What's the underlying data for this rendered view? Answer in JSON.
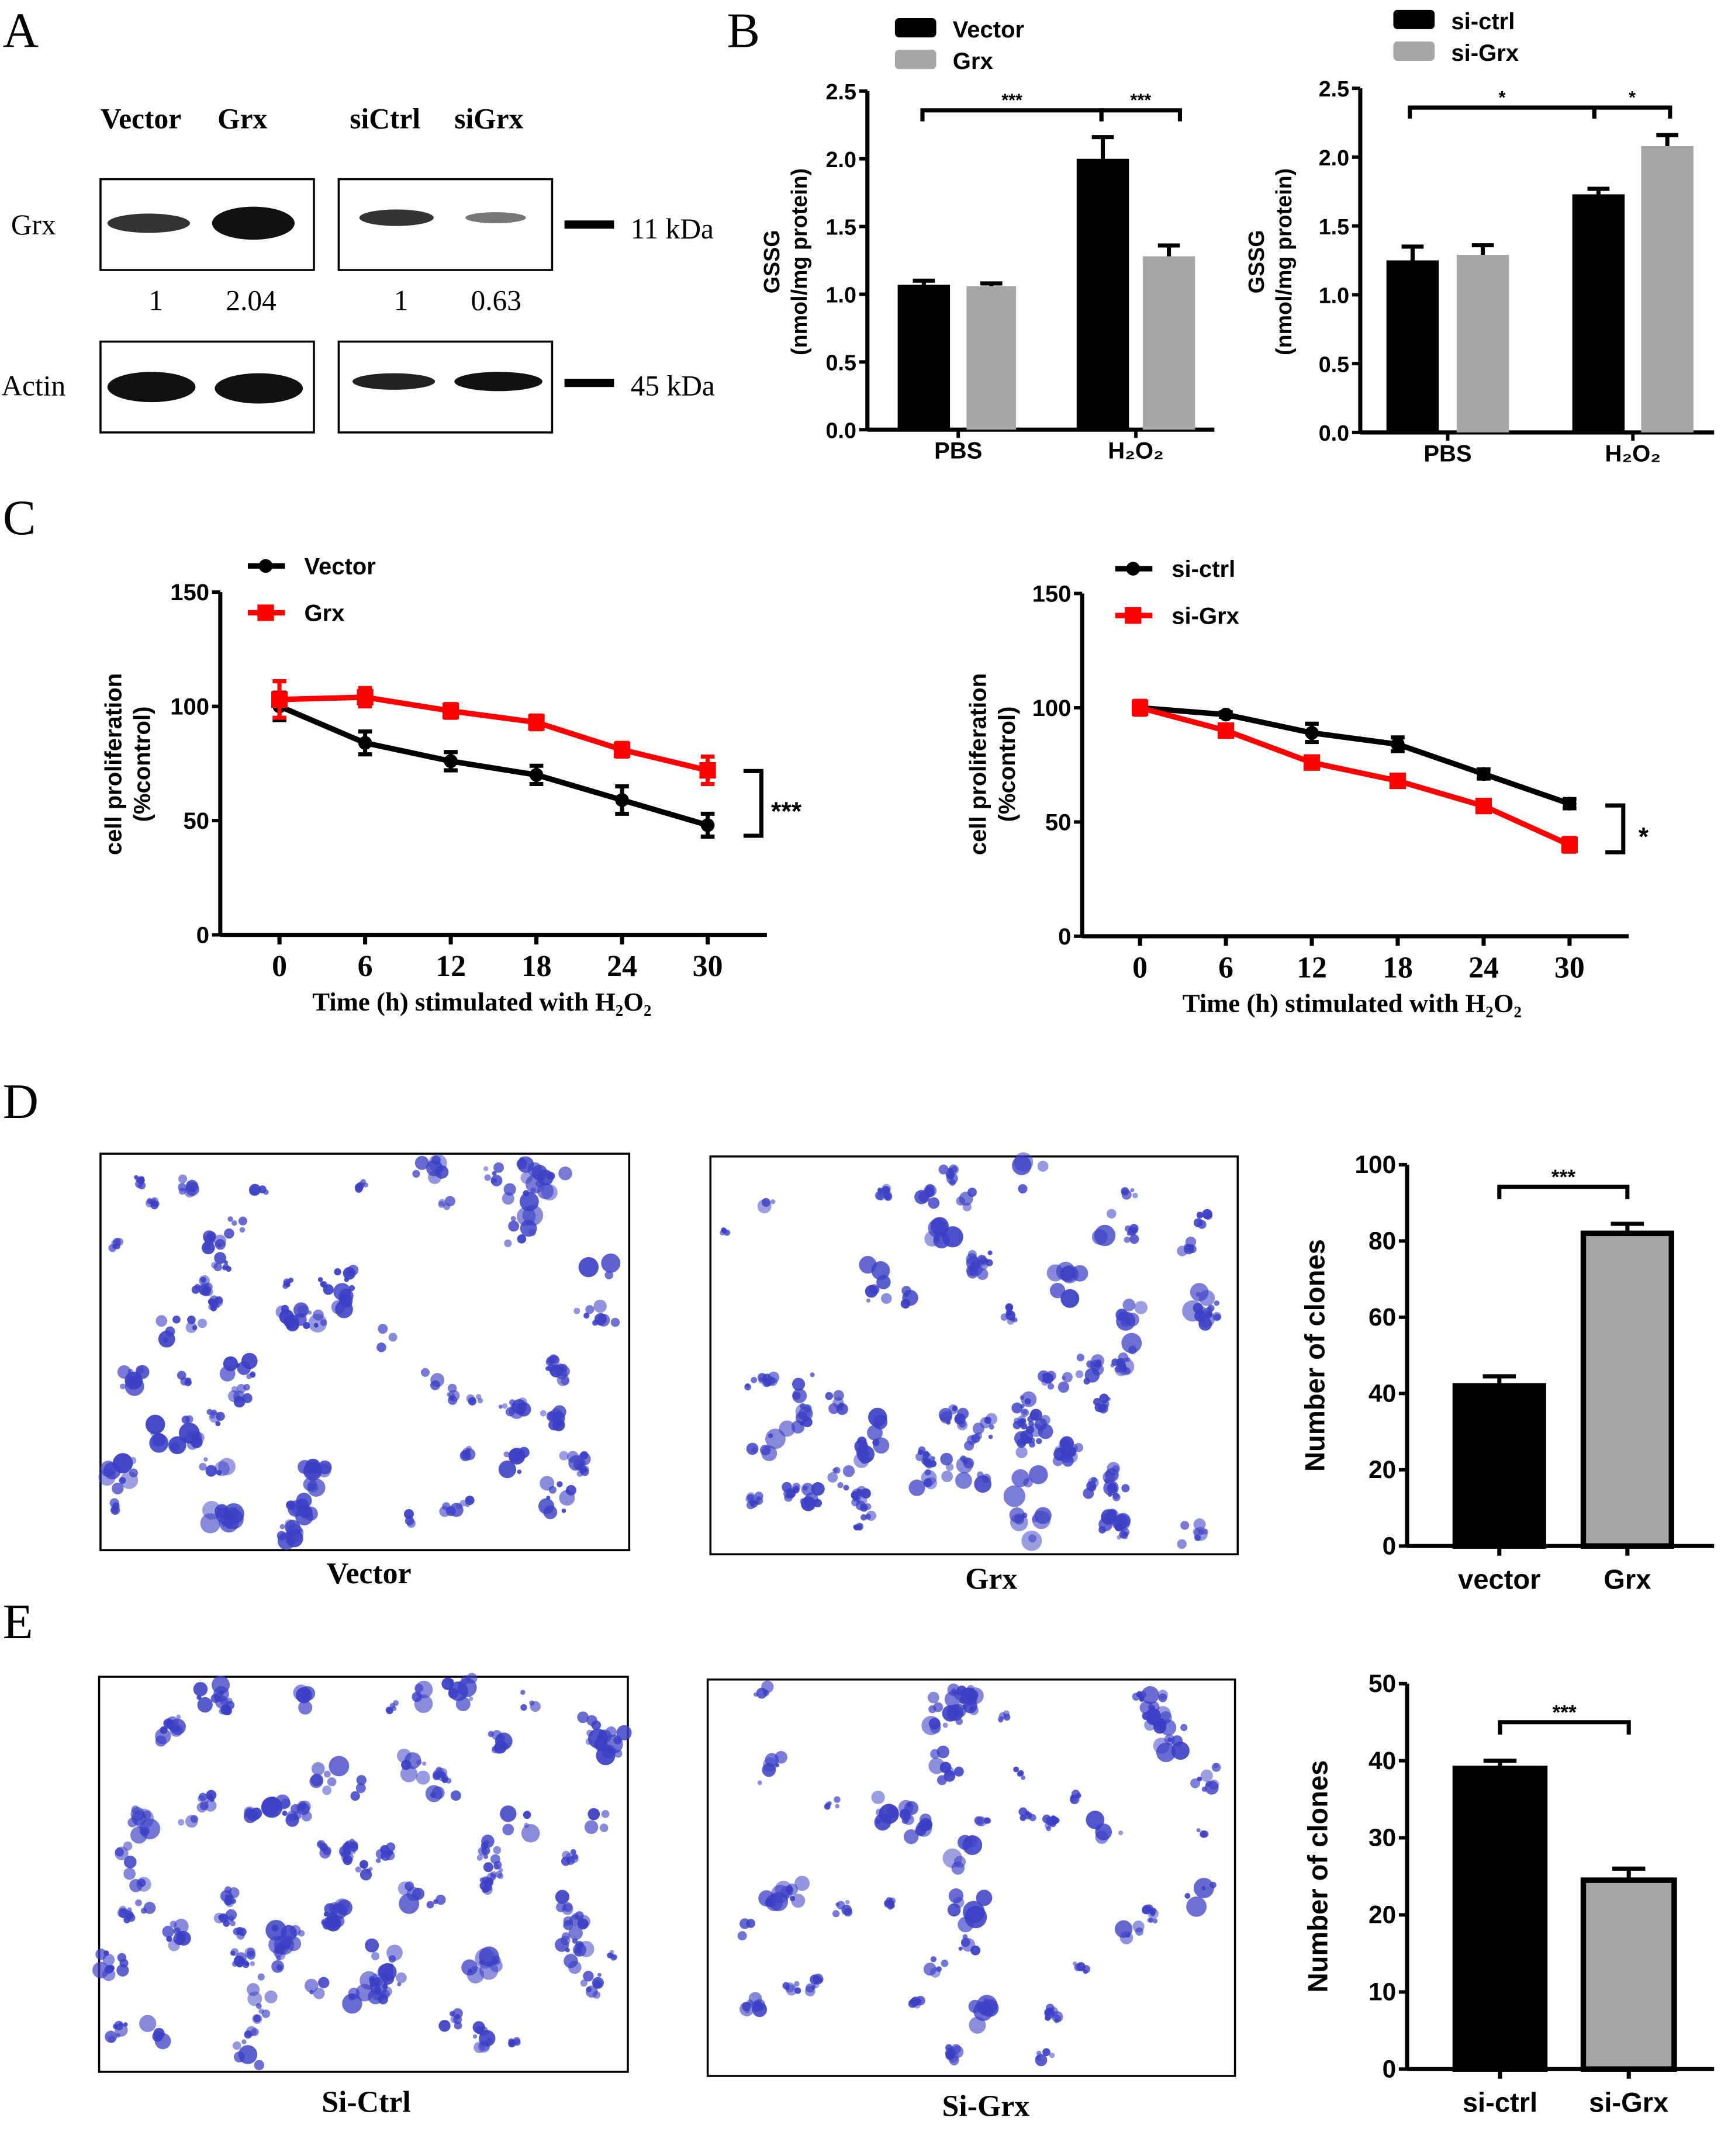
{
  "panel_labels": {
    "a": "A",
    "b": "B",
    "c": "C",
    "d": "D",
    "e": "E"
  },
  "western_blot": {
    "lane_labels": [
      "Vector",
      "Grx",
      "siCtrl",
      "siGrx"
    ],
    "row_labels": [
      "Grx",
      "Actin"
    ],
    "quantification": [
      "1",
      "2.04",
      "1",
      "0.63"
    ],
    "markers": [
      "11 kDa",
      "45 kDa"
    ]
  },
  "micrographs": {
    "captions": [
      "Vector",
      "Grx",
      "Si-Ctrl",
      "Si-Grx"
    ],
    "stain_color": "#3b3fc4"
  },
  "colors": {
    "black": "#000000",
    "grey": "#a6a6a6",
    "red": "#ff0000"
  },
  "chart_data": [
    {
      "id": "B-left",
      "type": "bar",
      "categories": [
        "PBS",
        "H₂O₂"
      ],
      "series": [
        {
          "name": "Vector",
          "values": [
            1.07,
            2.0
          ],
          "errors": [
            0.03,
            0.16
          ],
          "color": "#000000"
        },
        {
          "name": "Grx",
          "values": [
            1.06,
            1.28
          ],
          "errors": [
            0.02,
            0.08
          ],
          "color": "#a6a6a6"
        }
      ],
      "ylabel": [
        "GSSG",
        "(nmol/mg protein)"
      ],
      "ylim": [
        0,
        2.5
      ],
      "yticks": [
        "0.0",
        "0.5",
        "1.0",
        "1.5",
        "2.0",
        "2.5"
      ],
      "significance": [
        "***",
        "***"
      ],
      "legend": "top-left"
    },
    {
      "id": "B-right",
      "type": "bar",
      "categories": [
        "PBS",
        "H₂O₂"
      ],
      "series": [
        {
          "name": "si-ctrl",
          "values": [
            1.25,
            1.73
          ],
          "errors": [
            0.1,
            0.04
          ],
          "color": "#000000"
        },
        {
          "name": "si-Grx",
          "values": [
            1.29,
            2.08
          ],
          "errors": [
            0.07,
            0.08
          ],
          "color": "#a6a6a6"
        }
      ],
      "ylabel": [
        "GSSG",
        "(nmol/mg protein)"
      ],
      "ylim": [
        0,
        2.5
      ],
      "yticks": [
        "0.0",
        "0.5",
        "1.0",
        "1.5",
        "2.0",
        "2.5"
      ],
      "significance": [
        "*",
        "*"
      ],
      "legend": "top-left"
    },
    {
      "id": "C-left",
      "type": "line",
      "x": [
        0,
        6,
        12,
        18,
        24,
        30
      ],
      "series": [
        {
          "name": "Vector",
          "values": [
            100,
            84,
            76,
            70,
            59,
            48
          ],
          "errors": [
            6,
            5,
            4,
            4,
            6,
            5
          ],
          "color": "#000000",
          "marker": "circle"
        },
        {
          "name": "Grx",
          "values": [
            103,
            104,
            98,
            93,
            81,
            72
          ],
          "errors": [
            8,
            4,
            3,
            3,
            3,
            6
          ],
          "color": "#ff0000",
          "marker": "square"
        }
      ],
      "xlabel": "Time (h) stimulated with H₂O₂",
      "ylabel": [
        "cell proliferation",
        "(%control)"
      ],
      "ylim": [
        0,
        150
      ],
      "yticks": [
        "0",
        "50",
        "100",
        "150"
      ],
      "significance": "***",
      "legend": "top-left"
    },
    {
      "id": "C-right",
      "type": "line",
      "x": [
        0,
        6,
        12,
        18,
        24,
        30
      ],
      "series": [
        {
          "name": "si-ctrl",
          "values": [
            100,
            97,
            89,
            84,
            71,
            58
          ],
          "errors": [
            3,
            1,
            4,
            3,
            2,
            2
          ],
          "color": "#000000",
          "marker": "circle"
        },
        {
          "name": "si-Grx",
          "values": [
            100,
            90,
            76,
            68,
            57,
            40
          ],
          "errors": [
            3,
            2,
            2,
            2,
            2,
            3
          ],
          "color": "#ff0000",
          "marker": "square"
        }
      ],
      "xlabel": "Time (h) stimulated with H₂O₂",
      "ylabel": [
        "cell proliferation",
        "(%control)"
      ],
      "ylim": [
        0,
        150
      ],
      "yticks": [
        "0",
        "50",
        "100",
        "150"
      ],
      "significance": "*",
      "legend": "top-left"
    },
    {
      "id": "D",
      "type": "bar",
      "categories": [
        "vector",
        "Grx"
      ],
      "values": [
        42,
        82
      ],
      "errors": [
        2.5,
        2.5
      ],
      "colors": [
        "#000000",
        "#a6a6a6"
      ],
      "ylabel": "Number of clones",
      "ylim": [
        0,
        100
      ],
      "yticks": [
        "0",
        "20",
        "40",
        "60",
        "80",
        "100"
      ],
      "significance": "***"
    },
    {
      "id": "E",
      "type": "bar",
      "categories": [
        "si-ctrl",
        "si-Grx"
      ],
      "values": [
        39,
        24.5
      ],
      "errors": [
        1,
        1.5
      ],
      "colors": [
        "#000000",
        "#a6a6a6"
      ],
      "ylabel": "Number of clones",
      "ylim": [
        0,
        50
      ],
      "yticks": [
        "0",
        "10",
        "20",
        "30",
        "40",
        "50"
      ],
      "significance": "***"
    }
  ]
}
